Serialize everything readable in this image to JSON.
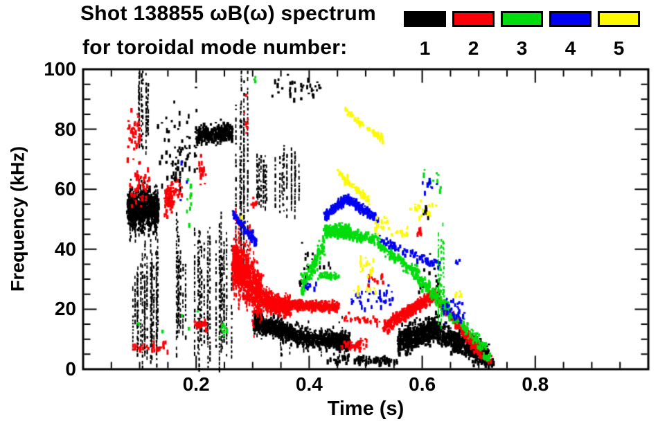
{
  "title_line1": "Shot 138855 ωB(ω) spectrum",
  "title_line2": "for toroidal mode number:",
  "legend": {
    "items": [
      {
        "label": "1",
        "color": "#000000"
      },
      {
        "label": "2",
        "color": "#fb0006"
      },
      {
        "label": "3",
        "color": "#00dc0e"
      },
      {
        "label": "4",
        "color": "#0000f2"
      },
      {
        "label": "5",
        "color": "#fdf900"
      }
    ]
  },
  "chart_data": {
    "type": "scatter",
    "title": "Shot 138855 ωB(ω) spectrum for toroidal mode number: 1-5",
    "xlabel": "Time (s)",
    "ylabel": "Frequency (kHz)",
    "xlim": [
      0,
      1.0
    ],
    "ylim": [
      0,
      100
    ],
    "x_major_ticks": [
      0.2,
      0.4,
      0.6,
      0.8
    ],
    "x_tick_labels": [
      "0.2",
      "0.4",
      "0.6",
      "0.8"
    ],
    "x_minor_step": 0.05,
    "y_major_ticks": [
      0,
      20,
      40,
      60,
      80,
      100
    ],
    "y_tick_labels": [
      "0",
      "20",
      "40",
      "60",
      "80",
      "100"
    ],
    "y_minor_step": 5,
    "grid": false,
    "legend_position": "top-right",
    "series": [
      {
        "name": "n=1",
        "mode": 1,
        "color": "#000000",
        "clusters": [
          {
            "t": [
              0.078,
              0.132
            ],
            "f": [
              53,
              53
            ],
            "spread": 8,
            "n": 650,
            "style": "fishband"
          },
          {
            "t": [
              0.08,
              0.132
            ],
            "f": [
              22,
              22
            ],
            "spread": 16,
            "n": 22,
            "style": "vstreaks"
          },
          {
            "t": [
              0.095,
              0.118
            ],
            "f": [
              87,
              87
            ],
            "spread": 12,
            "n": 9,
            "style": "vstreaks"
          },
          {
            "t": [
              0.13,
              0.2
            ],
            "f": [
              75,
              75
            ],
            "spread": 16,
            "n": 55,
            "style": "dots"
          },
          {
            "t": [
              0.155,
              0.175
            ],
            "f": [
              66,
              66
            ],
            "spread": 7,
            "n": 22,
            "style": "dots"
          },
          {
            "t": [
              0.198,
              0.262
            ],
            "f": [
              78,
              79
            ],
            "spread": 3.5,
            "n": 260,
            "style": "blob"
          },
          {
            "t": [
              0.16,
              0.265
            ],
            "f": [
              25,
              25
            ],
            "spread": 20,
            "n": 26,
            "style": "vstreaks"
          },
          {
            "t": [
              0.268,
              0.3
            ],
            "f": [
              60,
              60
            ],
            "spread": 34,
            "n": 8,
            "style": "vstreaks"
          },
          {
            "t": [
              0.305,
              0.385
            ],
            "f": [
              62,
              62
            ],
            "spread": 9,
            "n": 20,
            "style": "vstreaks"
          },
          {
            "t": [
              0.33,
              0.42
            ],
            "f": [
              94,
              94
            ],
            "spread": 5,
            "n": 35,
            "style": "dots"
          },
          {
            "t": [
              0.3,
              0.4
            ],
            "f": [
              16,
              10
            ],
            "spread": 4,
            "n": 600,
            "style": "fishband"
          },
          {
            "t": [
              0.4,
              0.47
            ],
            "f": [
              10,
              9
            ],
            "spread": 3.5,
            "n": 400,
            "style": "fishband"
          },
          {
            "t": [
              0.38,
              0.44
            ],
            "f": [
              35,
              35
            ],
            "spread": 8,
            "n": 25,
            "style": "dots"
          },
          {
            "t": [
              0.43,
              0.56
            ],
            "f": [
              3.5,
              3
            ],
            "spread": 2,
            "n": 80,
            "style": "dots"
          },
          {
            "t": [
              0.555,
              0.625
            ],
            "f": [
              9,
              14
            ],
            "spread": 5,
            "n": 480,
            "style": "blob"
          },
          {
            "t": [
              0.625,
              0.715
            ],
            "f": [
              12,
              4
            ],
            "spread": 4.5,
            "n": 430,
            "style": "blob"
          },
          {
            "t": [
              0.59,
              0.63
            ],
            "f": [
              30,
              30
            ],
            "spread": 9,
            "n": 22,
            "style": "dots"
          },
          {
            "t": [
              0.598,
              0.61
            ],
            "f": [
              52,
              52
            ],
            "spread": 3,
            "n": 6,
            "style": "dots"
          },
          {
            "t": [
              0.7,
              0.725
            ],
            "f": [
              3,
              2
            ],
            "spread": 1.5,
            "n": 30,
            "style": "dots"
          }
        ]
      },
      {
        "name": "n=2",
        "mode": 2,
        "color": "#fb0006",
        "clusters": [
          {
            "t": [
              0.077,
              0.1
            ],
            "f": [
              78,
              78
            ],
            "spread": 8,
            "n": 40,
            "style": "dots"
          },
          {
            "t": [
              0.082,
              0.115
            ],
            "f": [
              60,
              60
            ],
            "spread": 8,
            "n": 45,
            "style": "dots"
          },
          {
            "t": [
              0.143,
              0.158
            ],
            "f": [
              57,
              57
            ],
            "spread": 6,
            "n": 80,
            "style": "blob"
          },
          {
            "t": [
              0.158,
              0.172
            ],
            "f": [
              60,
              60
            ],
            "spread": 5,
            "n": 16,
            "style": "dots"
          },
          {
            "t": [
              0.203,
              0.216
            ],
            "f": [
              66,
              66
            ],
            "spread": 5,
            "n": 16,
            "style": "dots"
          },
          {
            "t": [
              0.085,
              0.15
            ],
            "f": [
              7.5,
              7.5
            ],
            "spread": 2,
            "n": 30,
            "style": "dots"
          },
          {
            "t": [
              0.195,
              0.215
            ],
            "f": [
              15,
              15
            ],
            "spread": 1.5,
            "n": 22,
            "style": "dots"
          },
          {
            "t": [
              0.285,
              0.291
            ],
            "f": [
              80,
              80
            ],
            "spread": 18,
            "n": 8,
            "style": "dots"
          },
          {
            "t": [
              0.263,
              0.315
            ],
            "f": [
              36,
              24
            ],
            "spread": 9,
            "n": 800,
            "style": "fishband"
          },
          {
            "t": [
              0.315,
              0.365
            ],
            "f": [
              23,
              21
            ],
            "spread": 4,
            "n": 420,
            "style": "fishband"
          },
          {
            "t": [
              0.365,
              0.45
            ],
            "f": [
              21.5,
              21
            ],
            "spread": 1.8,
            "n": 300,
            "style": "band"
          },
          {
            "t": [
              0.295,
              0.305
            ],
            "f": [
              55,
              55
            ],
            "spread": 2,
            "n": 8,
            "style": "dots"
          },
          {
            "t": [
              0.45,
              0.5
            ],
            "f": [
              8,
              8
            ],
            "spread": 2.5,
            "n": 40,
            "style": "dots"
          },
          {
            "t": [
              0.46,
              0.53
            ],
            "f": [
              17,
              16
            ],
            "spread": 2,
            "n": 28,
            "style": "dots"
          },
          {
            "t": [
              0.5,
              0.53
            ],
            "f": [
              30,
              30
            ],
            "spread": 2,
            "n": 10,
            "style": "dots"
          },
          {
            "t": [
              0.585,
              0.6
            ],
            "f": [
              46,
              46
            ],
            "spread": 2,
            "n": 8,
            "style": "dots"
          },
          {
            "t": [
              0.53,
              0.62
            ],
            "f": [
              14,
              25
            ],
            "spread": 2.5,
            "n": 400,
            "style": "band"
          },
          {
            "t": [
              0.62,
              0.7
            ],
            "f": [
              25,
              6
            ],
            "spread": 2.5,
            "n": 300,
            "style": "band"
          },
          {
            "t": [
              0.7,
              0.72
            ],
            "f": [
              5,
              3
            ],
            "spread": 1.5,
            "n": 16,
            "style": "dots"
          }
        ]
      },
      {
        "name": "n=3",
        "mode": 3,
        "color": "#00dc0e",
        "clusters": [
          {
            "t": [
              0.183,
              0.191
            ],
            "f": [
              57,
              57
            ],
            "spread": 8,
            "n": 12,
            "style": "dots"
          },
          {
            "t": [
              0.24,
              0.25
            ],
            "f": [
              14,
              14
            ],
            "spread": 6,
            "n": 9,
            "style": "dots"
          },
          {
            "t": [
              0.095,
              0.21
            ],
            "f": [
              16,
              16
            ],
            "spread": 5,
            "n": 6,
            "style": "dots"
          },
          {
            "t": [
              0.3,
              0.31
            ],
            "f": [
              96,
              96
            ],
            "spread": 2,
            "n": 3,
            "style": "dots"
          },
          {
            "t": [
              0.385,
              0.425
            ],
            "f": [
              27,
              42
            ],
            "spread": 4,
            "n": 120,
            "style": "band"
          },
          {
            "t": [
              0.425,
              0.472
            ],
            "f": [
              46,
              46
            ],
            "spread": 2.6,
            "n": 260,
            "style": "blob"
          },
          {
            "t": [
              0.472,
              0.52
            ],
            "f": [
              45,
              43
            ],
            "spread": 2,
            "n": 80,
            "style": "band"
          },
          {
            "t": [
              0.52,
              0.58
            ],
            "f": [
              42,
              33
            ],
            "spread": 2.5,
            "n": 110,
            "style": "band"
          },
          {
            "t": [
              0.415,
              0.45
            ],
            "f": [
              31,
              31
            ],
            "spread": 1.5,
            "n": 45,
            "style": "band"
          },
          {
            "t": [
              0.58,
              0.645
            ],
            "f": [
              33,
              20
            ],
            "spread": 3,
            "n": 150,
            "style": "band"
          },
          {
            "t": [
              0.627,
              0.637
            ],
            "f": [
              30,
              30
            ],
            "spread": 13,
            "n": 6,
            "style": "vstreaks"
          },
          {
            "t": [
              0.645,
              0.71
            ],
            "f": [
              19,
              7
            ],
            "spread": 2.5,
            "n": 80,
            "style": "band"
          },
          {
            "t": [
              0.6,
              0.635
            ],
            "f": [
              63,
              63
            ],
            "spread": 7,
            "n": 10,
            "style": "dots"
          },
          {
            "t": [
              0.7,
              0.72
            ],
            "f": [
              5,
              3
            ],
            "spread": 2,
            "n": 10,
            "style": "dots"
          }
        ]
      },
      {
        "name": "n=4",
        "mode": 4,
        "color": "#0000f2",
        "clusters": [
          {
            "t": [
              0.168,
              0.185
            ],
            "f": [
              65,
              65
            ],
            "spread": 13,
            "n": 3,
            "style": "dots"
          },
          {
            "t": [
              0.263,
              0.305
            ],
            "f": [
              52,
              42
            ],
            "spread": 2,
            "n": 80,
            "style": "band"
          },
          {
            "t": [
              0.39,
              0.41
            ],
            "f": [
              28,
              28
            ],
            "spread": 2,
            "n": 8,
            "style": "dots"
          },
          {
            "t": [
              0.425,
              0.465
            ],
            "f": [
              51,
              57
            ],
            "spread": 1.8,
            "n": 150,
            "style": "band"
          },
          {
            "t": [
              0.465,
              0.52
            ],
            "f": [
              57,
              50
            ],
            "spread": 1.8,
            "n": 150,
            "style": "band"
          },
          {
            "t": [
              0.47,
              0.545
            ],
            "f": [
              24,
              24
            ],
            "spread": 5,
            "n": 40,
            "style": "dots"
          },
          {
            "t": [
              0.525,
              0.63
            ],
            "f": [
              43,
              34
            ],
            "spread": 2,
            "n": 80,
            "style": "band"
          },
          {
            "t": [
              0.6,
              0.635
            ],
            "f": [
              61,
              61
            ],
            "spread": 4,
            "n": 9,
            "style": "dots"
          },
          {
            "t": [
              0.63,
              0.672
            ],
            "f": [
              21,
              18
            ],
            "spread": 5,
            "n": 35,
            "style": "dots"
          },
          {
            "t": [
              0.655,
              0.663
            ],
            "f": [
              36,
              36
            ],
            "spread": 1.5,
            "n": 4,
            "style": "dots"
          }
        ]
      },
      {
        "name": "n=5",
        "mode": 5,
        "color": "#fdf900",
        "clusters": [
          {
            "t": [
              0.462,
              0.528
            ],
            "f": [
              86,
              77
            ],
            "spread": 1.5,
            "n": 60,
            "style": "band"
          },
          {
            "t": [
              0.448,
              0.505
            ],
            "f": [
              66,
              56
            ],
            "spread": 1.5,
            "n": 55,
            "style": "band"
          },
          {
            "t": [
              0.488,
              0.515
            ],
            "f": [
              34,
              34
            ],
            "spread": 4,
            "n": 16,
            "style": "dots"
          },
          {
            "t": [
              0.478,
              0.518
            ],
            "f": [
              27,
              27
            ],
            "spread": 2,
            "n": 10,
            "style": "dots"
          },
          {
            "t": [
              0.51,
              0.545
            ],
            "f": [
              48,
              48
            ],
            "spread": 3,
            "n": 16,
            "style": "dots"
          },
          {
            "t": [
              0.545,
              0.578
            ],
            "f": [
              46,
              46
            ],
            "spread": 2,
            "n": 12,
            "style": "dots"
          },
          {
            "t": [
              0.575,
              0.632
            ],
            "f": [
              53,
              53
            ],
            "spread": 4.5,
            "n": 18,
            "style": "dots"
          },
          {
            "t": [
              0.655,
              0.668
            ],
            "f": [
              25,
              25
            ],
            "spread": 2,
            "n": 6,
            "style": "dots"
          },
          {
            "t": [
              0.276,
              0.282
            ],
            "f": [
              51,
              51
            ],
            "spread": 1,
            "n": 2,
            "style": "dots"
          }
        ]
      }
    ]
  }
}
